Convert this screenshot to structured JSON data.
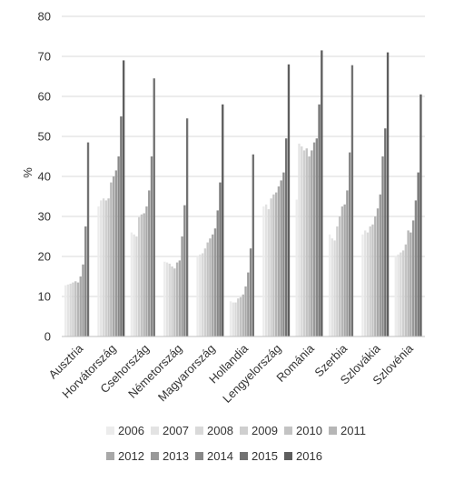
{
  "chart_data": {
    "type": "bar",
    "title": "",
    "xlabel": "",
    "ylabel": "%",
    "ylim": [
      0,
      80
    ],
    "yticks": [
      0,
      10,
      20,
      30,
      40,
      50,
      60,
      70,
      80
    ],
    "grid": true,
    "legend_position": "bottom",
    "categories": [
      "Ausztria",
      "Horvátország",
      "Csehország",
      "Németország",
      "Magyarország",
      "Hollandia",
      "Lengyelország",
      "Románia",
      "Szerbia",
      "Szlovákia",
      "Szlovénia"
    ],
    "series": [
      {
        "name": "2006",
        "color": "#ececec",
        "values": [
          12.8,
          32.5,
          26.0,
          18.7,
          20.0,
          8.8,
          32.5,
          34.2,
          25.5,
          25.5,
          20.2
        ]
      },
      {
        "name": "2007",
        "color": "#e3e3e3",
        "values": [
          13.0,
          34.0,
          25.5,
          18.5,
          20.5,
          8.5,
          33.0,
          48.2,
          24.5,
          26.5,
          20.5
        ]
      },
      {
        "name": "2008",
        "color": "#d9d9d9",
        "values": [
          13.2,
          34.5,
          25.0,
          18.2,
          20.8,
          8.5,
          31.8,
          47.5,
          24.0,
          26.0,
          21.0
        ]
      },
      {
        "name": "2009",
        "color": "#cfcfcf",
        "values": [
          13.5,
          34.0,
          29.8,
          17.5,
          22.0,
          9.5,
          34.5,
          46.5,
          27.5,
          27.5,
          21.5
        ]
      },
      {
        "name": "2010",
        "color": "#c3c3c3",
        "values": [
          13.8,
          34.5,
          30.5,
          17.0,
          23.5,
          9.8,
          35.5,
          47.0,
          30.0,
          28.0,
          23.0
        ]
      },
      {
        "name": "2011",
        "color": "#b6b6b6",
        "values": [
          13.5,
          38.5,
          30.8,
          18.5,
          24.5,
          10.5,
          36.0,
          45.0,
          32.5,
          30.0,
          26.5
        ]
      },
      {
        "name": "2012",
        "color": "#a8a8a8",
        "values": [
          15.0,
          40.0,
          32.5,
          19.0,
          25.5,
          12.5,
          37.5,
          46.5,
          33.0,
          32.0,
          26.0
        ]
      },
      {
        "name": "2013",
        "color": "#999999",
        "values": [
          18.0,
          41.5,
          36.5,
          25.0,
          27.0,
          16.0,
          39.0,
          48.5,
          36.5,
          35.5,
          29.0
        ]
      },
      {
        "name": "2014",
        "color": "#888888",
        "values": [
          27.5,
          45.0,
          45.0,
          32.8,
          31.5,
          22.0,
          41.0,
          49.5,
          46.0,
          45.0,
          34.0
        ]
      },
      {
        "name": "2015",
        "color": "#727272",
        "values": [
          48.5,
          55.0,
          64.5,
          54.5,
          38.5,
          45.5,
          49.5,
          58.0,
          67.8,
          52.0,
          41.0
        ]
      },
      {
        "name": "2016",
        "color": "#5e5e5e",
        "values": [
          null,
          69.0,
          null,
          null,
          58.0,
          null,
          68.0,
          71.5,
          null,
          71.0,
          60.5
        ]
      }
    ]
  }
}
